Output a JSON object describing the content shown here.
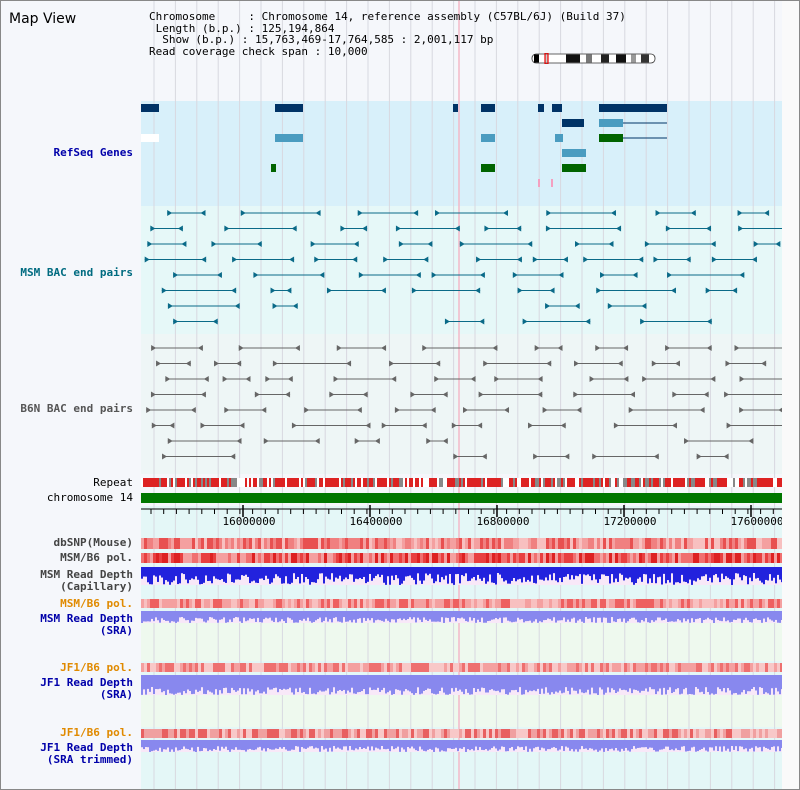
{
  "window": {
    "title": "Map View"
  },
  "info": {
    "chromosome_key": "Chromosome",
    "chromosome_val": "Chromosome 14, reference assembly (C57BL/6J) (Build 37)",
    "length_key": "Length (b.p.)",
    "length_val": "125,194,864",
    "show_key": "Show (b.p.)",
    "show_val": "15,763,469-17,764,585 : 2,001,117 bp",
    "coverage_key": "Read coverage check span",
    "coverage_val": "10,000"
  },
  "tracks": {
    "refseq": "RefSeq Genes",
    "msm_bac": "MSM BAC end pairs",
    "b6n_bac": "B6N BAC end pairs",
    "repeat": "Repeat",
    "chromosome": "chromosome 14",
    "dbsnp": "dbSNP(Mouse)",
    "msm_b6_pol_1": "MSM/B6 pol.",
    "msm_depth_cap": "MSM Read Depth\n(Capillary)",
    "msm_b6_pol_2": "MSM/B6 pol.",
    "msm_depth_sra": "MSM Read Depth\n(SRA)",
    "jf1_b6_pol_1": "JF1/B6 pol.",
    "jf1_depth_sra": "JF1 Read Depth\n(SRA)",
    "jf1_b6_pol_2": "JF1/B6 pol.",
    "jf1_depth_trim": "JF1 Read Depth\n(SRA trimmed)"
  },
  "axis": {
    "ticks": [
      "16000000",
      "16400000",
      "16800000",
      "17200000",
      "17600000"
    ]
  },
  "colors": {
    "refseq_bg": "#d8f0fa",
    "bac_bg": "#e6f8f8",
    "gene_dark": "#003366",
    "gene_mid": "#4a9cc0",
    "gene_green": "#006400",
    "chrom_green": "#007700",
    "repeat_red": "#dd2222",
    "depth_blue": "#2222dd",
    "depth_light": "#8888ee",
    "snp_pink": "#f4a0a0"
  }
}
